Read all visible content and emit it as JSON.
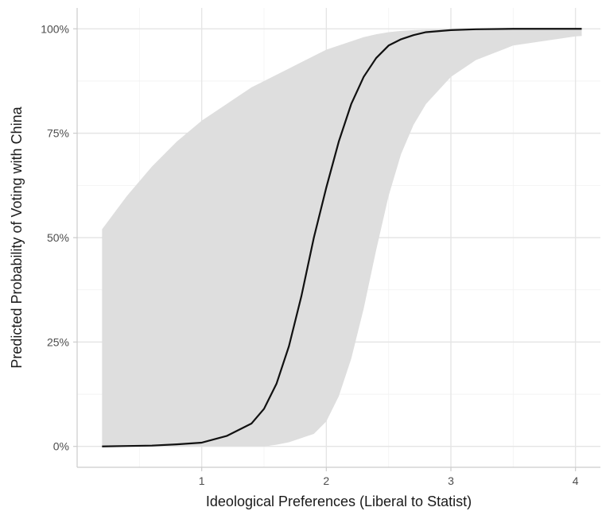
{
  "chart_data": {
    "type": "line",
    "title": "",
    "xlabel": "Ideological Preferences (Liberal to Statist)",
    "ylabel": "Predicted Probability of Voting with China",
    "xlim": [
      0.0,
      4.2
    ],
    "ylim": [
      -0.05,
      1.05
    ],
    "x_ticks": [
      {
        "value": 1,
        "label": "1"
      },
      {
        "value": 2,
        "label": "2"
      },
      {
        "value": 3,
        "label": "3"
      },
      {
        "value": 4,
        "label": "4"
      }
    ],
    "y_ticks": [
      {
        "value": 0,
        "label": "0%"
      },
      {
        "value": 0.25,
        "label": "25%"
      },
      {
        "value": 0.5,
        "label": "50%"
      },
      {
        "value": 0.75,
        "label": "75%"
      },
      {
        "value": 1,
        "label": "100%"
      }
    ],
    "grid": true,
    "legend": false,
    "series": [
      {
        "x": [
          0.2,
          0.4,
          0.6,
          0.8,
          1.0,
          1.2,
          1.4,
          1.5,
          1.6,
          1.7,
          1.8,
          1.9,
          2.0,
          2.1,
          2.2,
          2.3,
          2.4,
          2.5,
          2.6,
          2.7,
          2.8,
          3.0,
          3.2,
          3.5,
          4.0,
          4.05
        ],
        "y": [
          0.0,
          0.001,
          0.002,
          0.005,
          0.009,
          0.025,
          0.055,
          0.09,
          0.15,
          0.24,
          0.36,
          0.5,
          0.62,
          0.73,
          0.82,
          0.885,
          0.93,
          0.96,
          0.975,
          0.985,
          0.992,
          0.997,
          0.999,
          1.0,
          1.0,
          1.0
        ],
        "lower": [
          0.0,
          0.0,
          0.0,
          0.0,
          0.0,
          0.0,
          0.0,
          0.0,
          0.004,
          0.01,
          0.02,
          0.03,
          0.06,
          0.12,
          0.21,
          0.33,
          0.47,
          0.6,
          0.7,
          0.77,
          0.82,
          0.885,
          0.925,
          0.96,
          0.982,
          0.983
        ],
        "upper": [
          0.52,
          0.6,
          0.67,
          0.73,
          0.78,
          0.82,
          0.86,
          0.875,
          0.89,
          0.905,
          0.92,
          0.935,
          0.95,
          0.96,
          0.97,
          0.98,
          0.987,
          0.992,
          0.995,
          0.997,
          0.998,
          0.999,
          1.0,
          1.0,
          1.0,
          1.0
        ]
      }
    ],
    "colors": {
      "line": "#111111",
      "band": "#dedede",
      "grid": "#e5e5e5",
      "axis": "#cccccc"
    }
  }
}
